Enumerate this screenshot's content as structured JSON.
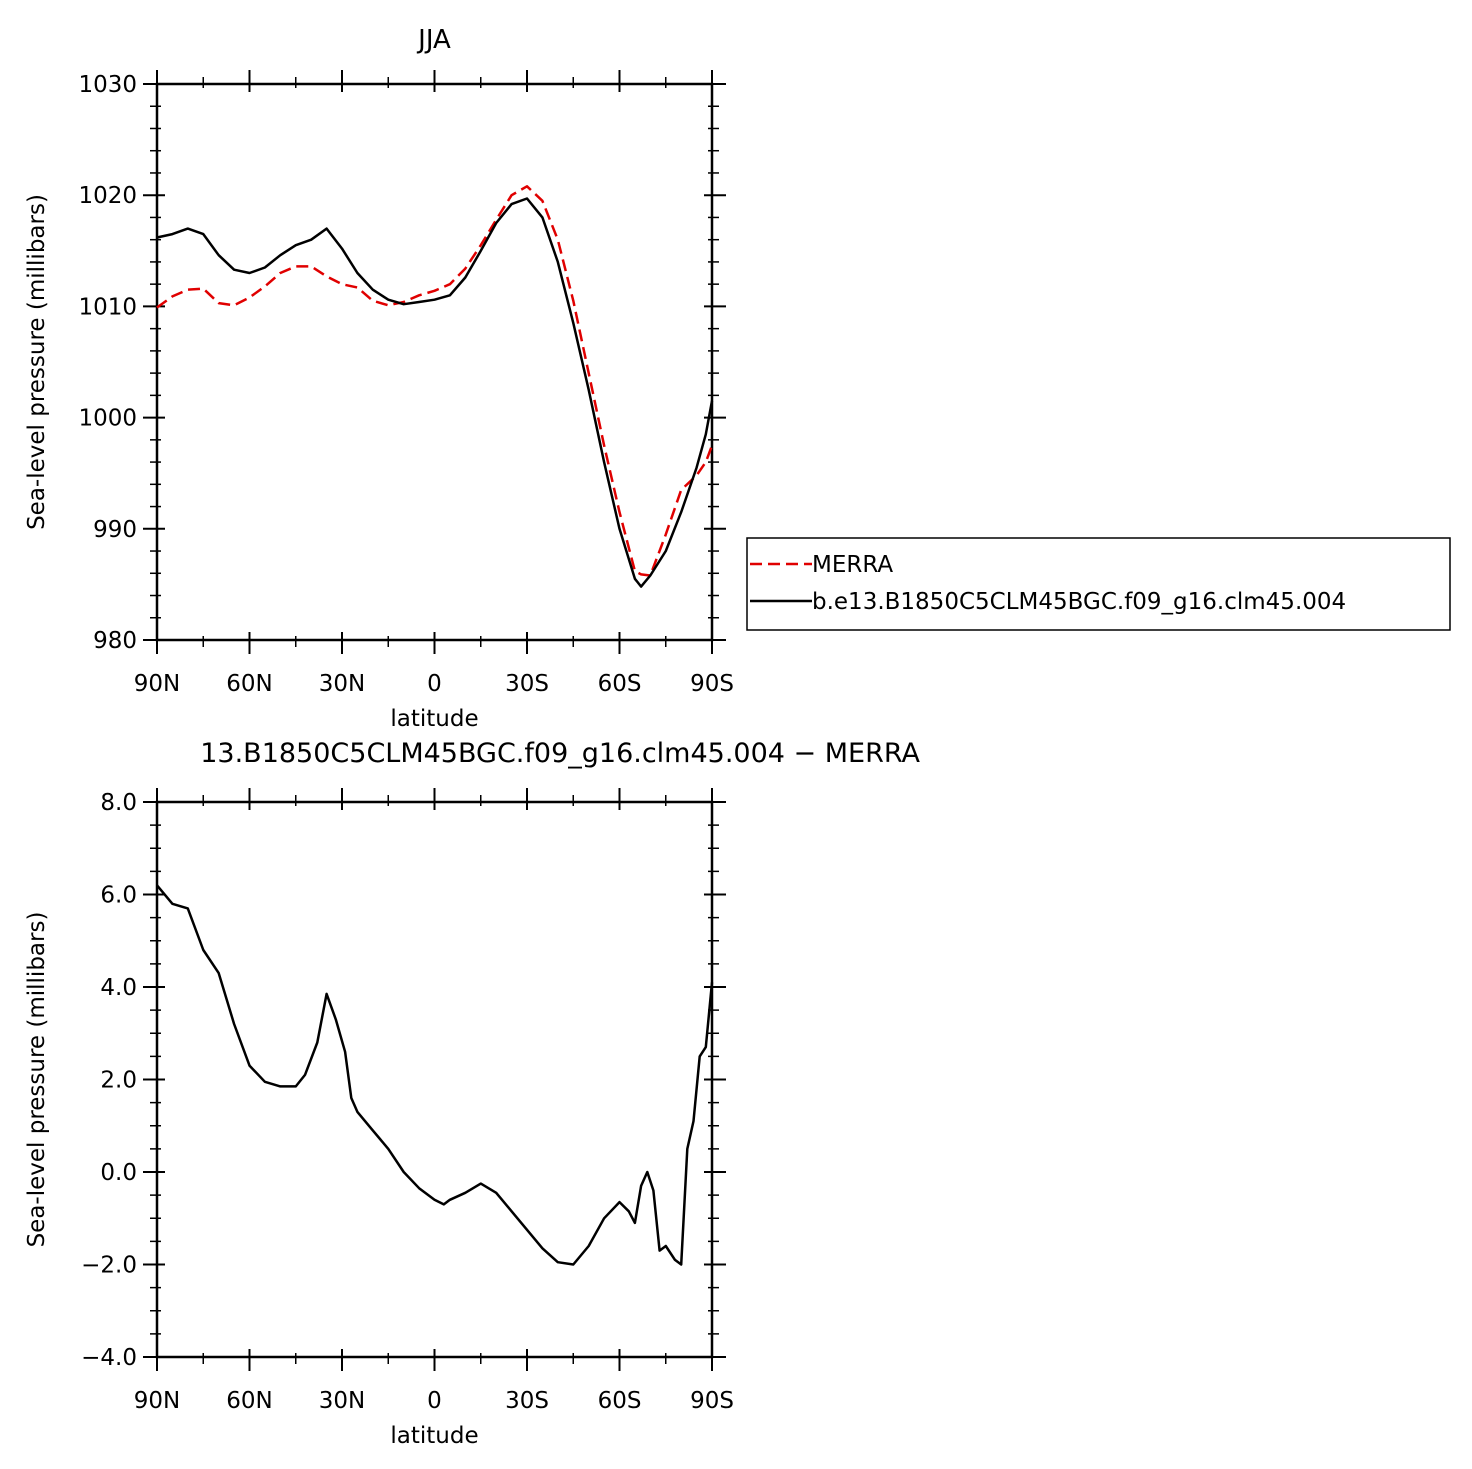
{
  "chart_data": [
    {
      "type": "line",
      "title": "JJA",
      "xlabel": "latitude",
      "ylabel": "Sea-level pressure (millibars)",
      "x": [
        90,
        85,
        80,
        75,
        70,
        65,
        60,
        55,
        50,
        45,
        40,
        35,
        30,
        25,
        20,
        15,
        10,
        5,
        0,
        -5,
        -10,
        -15,
        -20,
        -25,
        -30,
        -35,
        -40,
        -45,
        -50,
        -55,
        -60,
        -65,
        -67,
        -70,
        -75,
        -80,
        -85,
        -88,
        -90
      ],
      "xlim": [
        90,
        -90
      ],
      "xticks": [
        {
          "value": 90,
          "label": "90N"
        },
        {
          "value": 60,
          "label": "60N"
        },
        {
          "value": 30,
          "label": "30N"
        },
        0,
        {
          "value": -30,
          "label": "30S"
        },
        {
          "value": -60,
          "label": "60S"
        },
        {
          "value": -90,
          "label": "90S"
        }
      ],
      "xminor": 2,
      "ylim": [
        980,
        1030
      ],
      "yticks": [
        980,
        990,
        1000,
        1010,
        1020,
        1030
      ],
      "yminor": 5,
      "legend": "right",
      "series": [
        {
          "name": "MERRA",
          "color": "#e00000",
          "dashed": true,
          "values": [
            1009.9,
            1010.9,
            1011.5,
            1011.6,
            1010.3,
            1010.1,
            1010.8,
            1011.8,
            1013.0,
            1013.6,
            1013.6,
            1012.7,
            1012.0,
            1011.7,
            1010.5,
            1010.1,
            1010.4,
            1011.0,
            1011.4,
            1012.0,
            1013.4,
            1015.5,
            1017.8,
            1020.0,
            1020.8,
            1019.5,
            1016.0,
            1010.5,
            1004.0,
            997.5,
            991.5,
            986.2,
            985.9,
            985.8,
            989.5,
            993.5,
            994.8,
            996.0,
            997.5
          ]
        },
        {
          "name": "b.e13.B1850C5CLM45BGC.f09_g16.clm45.004",
          "color": "#000000",
          "dashed": false,
          "values": [
            1016.2,
            1016.5,
            1017.0,
            1016.5,
            1014.6,
            1013.3,
            1013.0,
            1013.5,
            1014.6,
            1015.5,
            1016.0,
            1017.0,
            1015.2,
            1013.0,
            1011.5,
            1010.6,
            1010.2,
            1010.4,
            1010.6,
            1011.0,
            1012.6,
            1015.0,
            1017.5,
            1019.2,
            1019.7,
            1018.0,
            1014.0,
            1008.5,
            1002.5,
            996.0,
            990.0,
            985.5,
            984.8,
            985.8,
            988.0,
            991.5,
            995.5,
            998.5,
            1001.5
          ]
        }
      ]
    },
    {
      "type": "line",
      "title": "13.B1850C5CLM45BGC.f09_g16.clm45.004 − MERRA",
      "xlabel": "latitude",
      "ylabel": "Sea-level pressure (millibars)",
      "x": [
        90,
        85,
        80,
        75,
        70,
        65,
        60,
        55,
        50,
        45,
        42,
        38,
        35,
        32,
        29,
        27,
        25,
        20,
        15,
        10,
        5,
        0,
        -3,
        -5,
        -10,
        -15,
        -20,
        -25,
        -30,
        -35,
        -40,
        -45,
        -50,
        -55,
        -60,
        -63,
        -65,
        -67,
        -69,
        -71,
        -73,
        -75,
        -78,
        -80,
        -82,
        -84,
        -86,
        -88,
        -90
      ],
      "xlim": [
        90,
        -90
      ],
      "xticks": [
        {
          "value": 90,
          "label": "90N"
        },
        {
          "value": 60,
          "label": "60N"
        },
        {
          "value": 30,
          "label": "30N"
        },
        0,
        {
          "value": -30,
          "label": "30S"
        },
        {
          "value": -60,
          "label": "60S"
        },
        {
          "value": -90,
          "label": "90S"
        }
      ],
      "xminor": 2,
      "ylim": [
        -4,
        8
      ],
      "yticks": [
        {
          "value": -4,
          "label": "−4.0"
        },
        {
          "value": -2,
          "label": "−2.0"
        },
        {
          "value": 0,
          "label": "0.0"
        },
        {
          "value": 2,
          "label": "2.0"
        },
        {
          "value": 4,
          "label": "4.0"
        },
        {
          "value": 6,
          "label": "6.0"
        },
        {
          "value": 8,
          "label": "8.0"
        }
      ],
      "yminor": 4,
      "series": [
        {
          "color": "#000000",
          "dashed": false,
          "values": [
            6.2,
            5.8,
            5.7,
            4.8,
            4.3,
            3.2,
            2.3,
            1.95,
            1.85,
            1.85,
            2.1,
            2.8,
            3.85,
            3.3,
            2.6,
            1.6,
            1.3,
            0.9,
            0.5,
            0.0,
            -0.35,
            -0.6,
            -0.7,
            -0.6,
            -0.45,
            -0.25,
            -0.45,
            -0.85,
            -1.25,
            -1.65,
            -1.95,
            -2.0,
            -1.6,
            -1.0,
            -0.65,
            -0.85,
            -1.1,
            -0.3,
            0.0,
            -0.4,
            -1.7,
            -1.6,
            -1.9,
            -2.0,
            0.5,
            1.1,
            2.5,
            2.7,
            4.1
          ]
        }
      ]
    }
  ]
}
